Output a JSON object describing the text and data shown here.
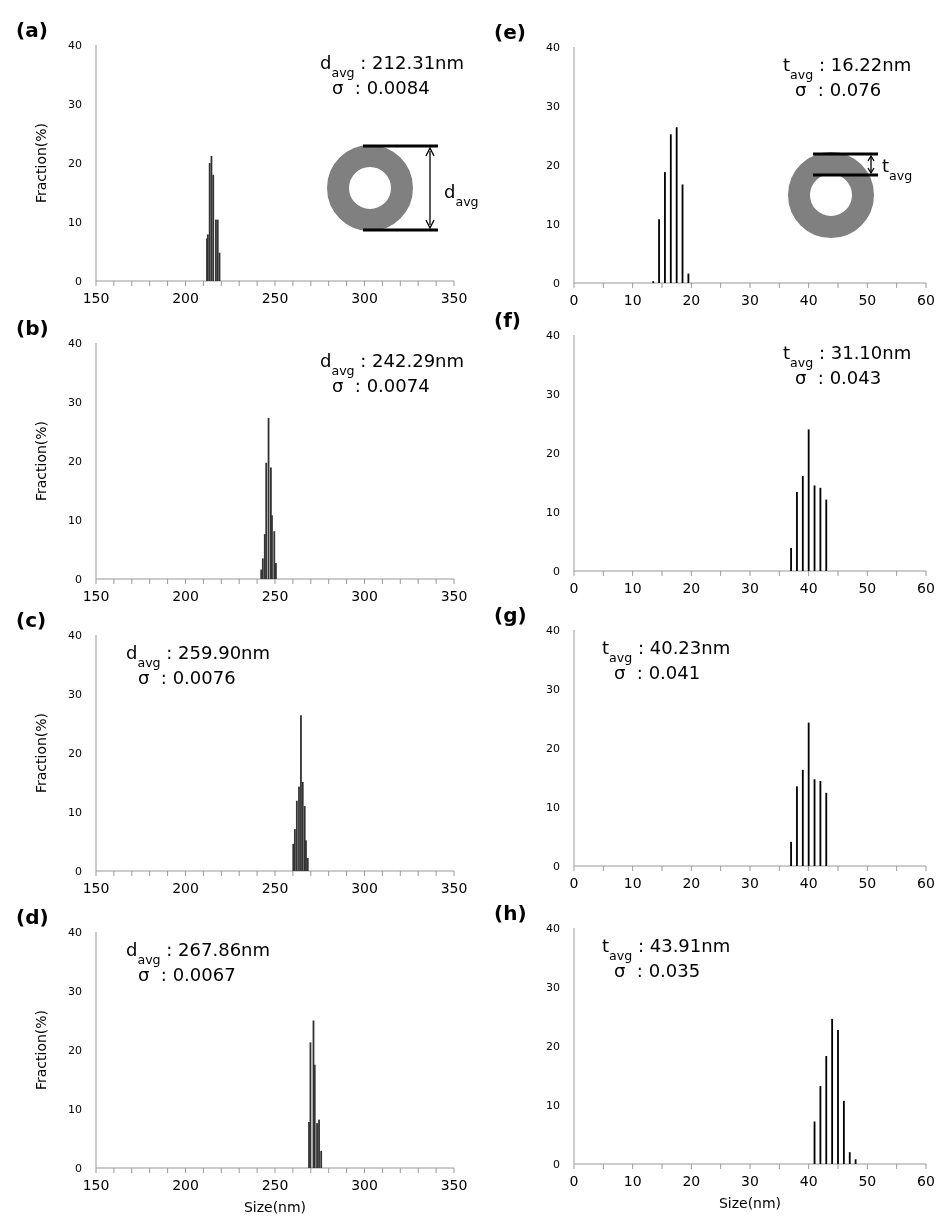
{
  "chart_data": [
    {
      "type": "bar",
      "title": "(a)",
      "ylabel": "Fraction(%)",
      "color": "#333333",
      "x": [
        212,
        212.5,
        213.5,
        214.5,
        215.5,
        217,
        218,
        219
      ],
      "values": [
        7.2,
        7.9,
        20,
        21.2,
        18,
        10.4,
        10.4,
        4.8
      ],
      "xlim": [
        150,
        350
      ],
      "xticks": [
        150,
        {
          "value": 160,
          "label": null
        },
        {
          "value": 170,
          "label": null
        },
        {
          "value": 180,
          "label": null
        },
        {
          "value": 190,
          "label": null
        },
        200,
        {
          "value": 210,
          "label": null
        },
        {
          "value": 220,
          "label": null
        },
        {
          "value": 230,
          "label": null
        },
        {
          "value": 240,
          "label": null
        },
        250,
        {
          "value": 260,
          "label": null
        },
        {
          "value": 270,
          "label": null
        },
        {
          "value": 280,
          "label": null
        },
        {
          "value": 290,
          "label": null
        },
        300,
        {
          "value": 310,
          "label": null
        },
        {
          "value": 320,
          "label": null
        },
        {
          "value": 330,
          "label": null
        },
        {
          "value": 340,
          "label": null
        },
        350
      ],
      "ylim": [
        0,
        40
      ],
      "yticks": [
        0,
        10,
        20,
        30,
        40
      ],
      "annotations": [
        "d$_{avg}$ : 212.31nm",
        "σ  : 0.0084",
        "d$_{avg}$"
      ]
    },
    {
      "type": "bar",
      "title": "(b)",
      "ylabel": "Fraction(%)",
      "color": "#333333",
      "x": [
        242.3,
        243.2,
        244.3,
        245.1,
        246.4,
        247.7,
        248.3,
        249.6,
        250.5
      ],
      "values": [
        1.6,
        3.5,
        7.6,
        19.7,
        27.3,
        18.9,
        10.8,
        8.1,
        2.7
      ],
      "xlim": [
        150,
        350
      ],
      "xticks": [
        150,
        {
          "value": 160,
          "label": null
        },
        {
          "value": 170,
          "label": null
        },
        {
          "value": 180,
          "label": null
        },
        {
          "value": 190,
          "label": null
        },
        200,
        {
          "value": 210,
          "label": null
        },
        {
          "value": 220,
          "label": null
        },
        {
          "value": 230,
          "label": null
        },
        {
          "value": 240,
          "label": null
        },
        250,
        {
          "value": 260,
          "label": null
        },
        {
          "value": 270,
          "label": null
        },
        {
          "value": 280,
          "label": null
        },
        {
          "value": 290,
          "label": null
        },
        300,
        {
          "value": 310,
          "label": null
        },
        {
          "value": 320,
          "label": null
        },
        {
          "value": 330,
          "label": null
        },
        {
          "value": 340,
          "label": null
        },
        350
      ],
      "ylim": [
        0,
        40
      ],
      "yticks": [
        0,
        10,
        20,
        30,
        40
      ],
      "annotations": [
        "d$_{avg}$ : 242.29nm",
        "σ  : 0.0074"
      ]
    },
    {
      "type": "bar",
      "title": "(c)",
      "ylabel": "Fraction(%)",
      "color": "#333333",
      "x": [
        260.2,
        261.1,
        262.2,
        263.4,
        264.5,
        265.5,
        266.6,
        267.3,
        268.3
      ],
      "values": [
        4.6,
        7.1,
        11.9,
        14.3,
        26.4,
        15.1,
        11,
        5.2,
        2.2
      ],
      "xlim": [
        150,
        350
      ],
      "xticks": [
        150,
        {
          "value": 160,
          "label": null
        },
        {
          "value": 170,
          "label": null
        },
        {
          "value": 180,
          "label": null
        },
        {
          "value": 190,
          "label": null
        },
        200,
        {
          "value": 210,
          "label": null
        },
        {
          "value": 220,
          "label": null
        },
        {
          "value": 230,
          "label": null
        },
        {
          "value": 240,
          "label": null
        },
        250,
        {
          "value": 260,
          "label": null
        },
        {
          "value": 270,
          "label": null
        },
        {
          "value": 280,
          "label": null
        },
        {
          "value": 290,
          "label": null
        },
        300,
        {
          "value": 310,
          "label": null
        },
        {
          "value": 320,
          "label": null
        },
        {
          "value": 330,
          "label": null
        },
        {
          "value": 340,
          "label": null
        },
        350
      ],
      "ylim": [
        0,
        40
      ],
      "yticks": [
        0,
        10,
        20,
        30,
        40
      ],
      "annotations": [
        "d$_{avg}$ : 259.90nm",
        "σ  : 0.0076"
      ]
    },
    {
      "type": "bar",
      "title": "(d)",
      "xlabel": "Size(nm)",
      "ylabel": "Fraction(%)",
      "color": "#333333",
      "x": [
        269,
        269.8,
        271.5,
        272.2,
        273.5,
        274.6,
        275.8
      ],
      "values": [
        7.8,
        21.3,
        25,
        17.5,
        7.6,
        8.2,
        2.9
      ],
      "xlim": [
        150,
        350
      ],
      "xticks": [
        150,
        {
          "value": 160,
          "label": null
        },
        {
          "value": 170,
          "label": null
        },
        {
          "value": 180,
          "label": null
        },
        {
          "value": 190,
          "label": null
        },
        200,
        {
          "value": 210,
          "label": null
        },
        {
          "value": 220,
          "label": null
        },
        {
          "value": 230,
          "label": null
        },
        {
          "value": 240,
          "label": null
        },
        250,
        {
          "value": 260,
          "label": null
        },
        {
          "value": 270,
          "label": null
        },
        {
          "value": 280,
          "label": null
        },
        {
          "value": 290,
          "label": null
        },
        300,
        {
          "value": 310,
          "label": null
        },
        {
          "value": 320,
          "label": null
        },
        {
          "value": 330,
          "label": null
        },
        {
          "value": 340,
          "label": null
        },
        350
      ],
      "ylim": [
        0,
        40
      ],
      "yticks": [
        0,
        10,
        20,
        30,
        40
      ],
      "annotations": [
        "d$_{avg}$ : 267.86nm",
        "σ  : 0.0067"
      ]
    },
    {
      "type": "bar",
      "title": "(e)",
      "color": "#000000",
      "x": [
        13.5,
        14.5,
        15.5,
        16.5,
        17.5,
        18.5,
        19.5
      ],
      "values": [
        0.3,
        10.8,
        18.8,
        25.2,
        26.4,
        16.7,
        1.6
      ],
      "xlim": [
        0,
        60
      ],
      "xticks": [
        0,
        {
          "value": 5,
          "label": null
        },
        10,
        {
          "value": 15,
          "label": null
        },
        20,
        {
          "value": 25,
          "label": null
        },
        30,
        {
          "value": 35,
          "label": null
        },
        40,
        {
          "value": 45,
          "label": null
        },
        50,
        {
          "value": 55,
          "label": null
        },
        60
      ],
      "ylim": [
        0,
        40
      ],
      "yticks": [
        0,
        10,
        20,
        30,
        40
      ],
      "annotations": [
        "t$_{avg}$ : 16.22nm",
        "σ  : 0.076",
        "t$_{avg}$"
      ]
    },
    {
      "type": "bar",
      "title": "(f)",
      "color": "#000000",
      "x": [
        37,
        38,
        39,
        40,
        41,
        42,
        43
      ],
      "values": [
        3.9,
        13.4,
        16.1,
        24,
        14.5,
        14.1,
        12.1
      ],
      "xlim": [
        0,
        60
      ],
      "xticks": [
        0,
        {
          "value": 5,
          "label": null
        },
        10,
        {
          "value": 15,
          "label": null
        },
        20,
        {
          "value": 25,
          "label": null
        },
        30,
        {
          "value": 35,
          "label": null
        },
        40,
        {
          "value": 45,
          "label": null
        },
        50,
        {
          "value": 55,
          "label": null
        },
        60
      ],
      "ylim": [
        0,
        40
      ],
      "yticks": [
        0,
        10,
        20,
        30,
        40
      ],
      "annotations": [
        "t$_{avg}$ : 31.10nm",
        "σ  : 0.043"
      ]
    },
    {
      "type": "bar",
      "title": "(g)",
      "color": "#000000",
      "x": [
        37,
        38,
        39,
        40,
        41,
        42,
        43
      ],
      "values": [
        4.1,
        13.5,
        16.3,
        24.3,
        14.7,
        14.4,
        12.4
      ],
      "xlim": [
        0,
        60
      ],
      "xticks": [
        0,
        {
          "value": 5,
          "label": null
        },
        10,
        {
          "value": 15,
          "label": null
        },
        20,
        {
          "value": 25,
          "label": null
        },
        30,
        {
          "value": 35,
          "label": null
        },
        40,
        {
          "value": 45,
          "label": null
        },
        50,
        {
          "value": 55,
          "label": null
        },
        60
      ],
      "ylim": [
        0,
        40
      ],
      "yticks": [
        0,
        10,
        20,
        30,
        40
      ],
      "annotations": [
        "t$_{avg}$ : 40.23nm",
        "σ  : 0.041"
      ]
    },
    {
      "type": "bar",
      "title": "(h)",
      "xlabel": "Size(nm)",
      "color": "#000000",
      "x": [
        41,
        42,
        43,
        44,
        45,
        46,
        47,
        48
      ],
      "values": [
        7.2,
        13.2,
        18.3,
        24.6,
        22.7,
        10.7,
        2,
        0.8
      ],
      "xlim": [
        0,
        60
      ],
      "xticks": [
        0,
        {
          "value": 5,
          "label": null
        },
        10,
        {
          "value": 15,
          "label": null
        },
        20,
        {
          "value": 25,
          "label": null
        },
        30,
        {
          "value": 35,
          "label": null
        },
        40,
        {
          "value": 45,
          "label": null
        },
        50,
        {
          "value": 55,
          "label": null
        },
        60
      ],
      "ylim": [
        0,
        40
      ],
      "yticks": [
        0,
        10,
        20,
        30,
        40
      ],
      "annotations": [
        "t$_{avg}$ : 43.91nm",
        "σ  : 0.035"
      ]
    }
  ]
}
